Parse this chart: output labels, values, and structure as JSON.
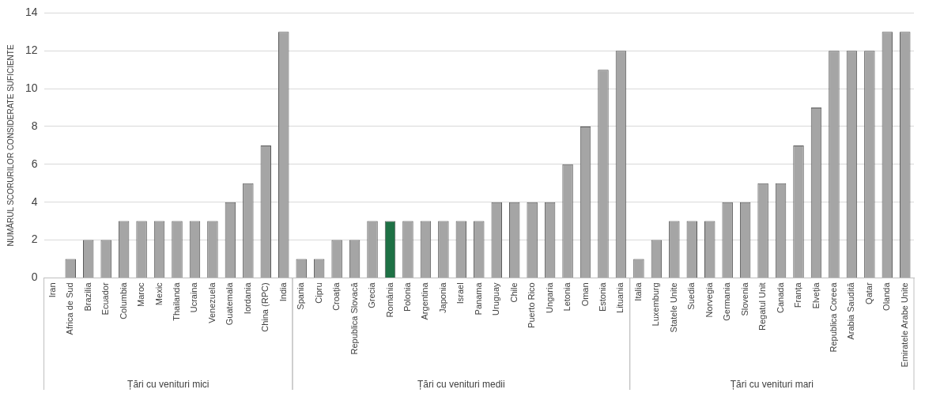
{
  "chart_data": {
    "type": "bar",
    "ylabel": "NUMĂRUL SCORURILOR CONSIDERATE SUFICIENTE",
    "categories": [
      "Iran",
      "Africa de Sud",
      "Brazilia",
      "Ecuador",
      "Columbia",
      "Maroc",
      "Mexic",
      "Thailanda",
      "Ucraina",
      "Venezuela",
      "Guatemala",
      "Iordania",
      "China (RPC)",
      "India",
      "Spania",
      "Cipru",
      "Croația",
      "Republica Slovacă",
      "Grecia",
      "România",
      "Polonia",
      "Argentina",
      "Japonia",
      "Israel",
      "Panama",
      "Uruguay",
      "Chile",
      "Puerto Rico",
      "Ungaria",
      "Letonia",
      "Oman",
      "Estonia",
      "Lituania",
      "Italia",
      "Luxemburg",
      "Statele Unite",
      "Suedia",
      "Norvegia",
      "Germania",
      "Slovenia",
      "Regatul Unit",
      "Canada",
      "Franța",
      "Elveția",
      "Republica Coreea",
      "Arabia Saudită",
      "Qatar",
      "Olanda",
      "Emiratele Arabe Unite"
    ],
    "values": [
      0,
      1,
      2,
      2,
      3,
      3,
      3,
      3,
      3,
      3,
      4,
      5,
      7,
      13,
      1,
      1,
      2,
      2,
      3,
      3,
      3,
      3,
      3,
      3,
      3,
      4,
      4,
      4,
      4,
      6,
      8,
      11,
      12,
      1,
      2,
      3,
      3,
      3,
      4,
      4,
      5,
      5,
      7,
      9,
      12,
      12,
      12,
      13,
      13
    ],
    "colors": [
      "#a5a5a5",
      "#a5a5a5",
      "#a5a5a5",
      "#a5a5a5",
      "#a5a5a5",
      "#a5a5a5",
      "#a5a5a5",
      "#a5a5a5",
      "#a5a5a5",
      "#a5a5a5",
      "#a5a5a5",
      "#a5a5a5",
      "#a5a5a5",
      "#a5a5a5",
      "#a5a5a5",
      "#a5a5a5",
      "#a5a5a5",
      "#a5a5a5",
      "#a5a5a5",
      "#1e7145",
      "#a5a5a5",
      "#a5a5a5",
      "#a5a5a5",
      "#a5a5a5",
      "#a5a5a5",
      "#a5a5a5",
      "#a5a5a5",
      "#a5a5a5",
      "#a5a5a5",
      "#a5a5a5",
      "#a5a5a5",
      "#a5a5a5",
      "#a5a5a5",
      "#a5a5a5",
      "#a5a5a5",
      "#a5a5a5",
      "#a5a5a5",
      "#a5a5a5",
      "#a5a5a5",
      "#a5a5a5",
      "#a5a5a5",
      "#a5a5a5",
      "#a5a5a5",
      "#a5a5a5",
      "#a5a5a5",
      "#a5a5a5",
      "#a5a5a5",
      "#a5a5a5",
      "#a5a5a5"
    ],
    "ylim": [
      0,
      14
    ],
    "yticks": [
      0,
      2,
      4,
      6,
      8,
      10,
      12,
      14
    ],
    "grid": "y",
    "legend": false,
    "annotations": [
      "Țări cu venituri mici",
      "Țări cu venituri medii",
      "Țări cu venituri mari"
    ]
  }
}
